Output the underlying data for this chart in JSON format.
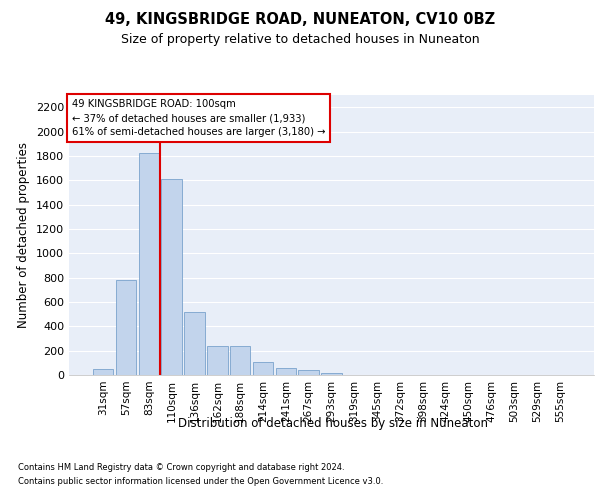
{
  "title1": "49, KINGSBRIDGE ROAD, NUNEATON, CV10 0BZ",
  "title2": "Size of property relative to detached houses in Nuneaton",
  "xlabel": "Distribution of detached houses by size in Nuneaton",
  "ylabel": "Number of detached properties",
  "categories": [
    "31sqm",
    "57sqm",
    "83sqm",
    "110sqm",
    "136sqm",
    "162sqm",
    "188sqm",
    "214sqm",
    "241sqm",
    "267sqm",
    "293sqm",
    "319sqm",
    "345sqm",
    "372sqm",
    "398sqm",
    "424sqm",
    "450sqm",
    "476sqm",
    "503sqm",
    "529sqm",
    "555sqm"
  ],
  "values": [
    50,
    780,
    1820,
    1610,
    520,
    235,
    235,
    105,
    55,
    40,
    20,
    0,
    0,
    0,
    0,
    0,
    0,
    0,
    0,
    0,
    0
  ],
  "bar_color": "#c2d4ec",
  "bar_edge_color": "#7aa3cc",
  "vline_color": "#dd0000",
  "vline_pos": 2.5,
  "ylim": [
    0,
    2300
  ],
  "yticks": [
    0,
    200,
    400,
    600,
    800,
    1000,
    1200,
    1400,
    1600,
    1800,
    2000,
    2200
  ],
  "annotation_line1": "49 KINGSBRIDGE ROAD: 100sqm",
  "annotation_line2": "← 37% of detached houses are smaller (1,933)",
  "annotation_line3": "61% of semi-detached houses are larger (3,180) →",
  "footnote1": "Contains HM Land Registry data © Crown copyright and database right 2024.",
  "footnote2": "Contains public sector information licensed under the Open Government Licence v3.0.",
  "plot_bg": "#e8eef8",
  "fig_bg": "#ffffff",
  "grid_color": "#ffffff"
}
